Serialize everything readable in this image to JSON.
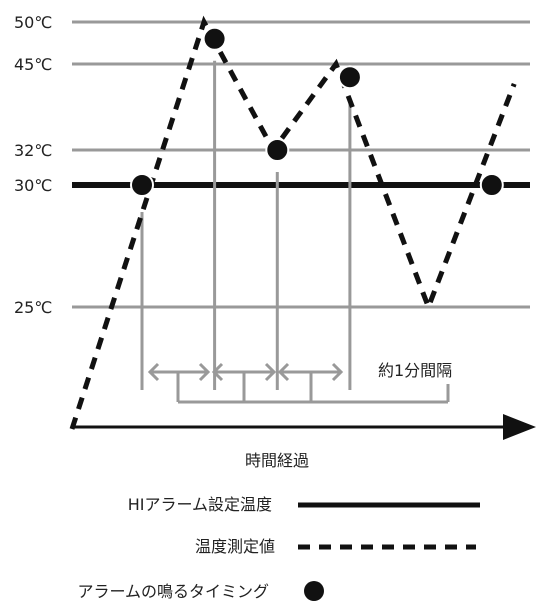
{
  "chart_data": {
    "type": "line",
    "y_ticks": [
      {
        "value": 50,
        "label": "50℃"
      },
      {
        "value": 45,
        "label": "45℃"
      },
      {
        "value": 32,
        "label": "32℃"
      },
      {
        "value": 30,
        "label": "30℃"
      },
      {
        "value": 25,
        "label": "25℃"
      }
    ],
    "threshold": {
      "value": 30
    },
    "measured_temperature": [
      {
        "t": 0,
        "v": 20
      },
      {
        "t": 2.0,
        "v": 50
      },
      {
        "t": 3.05,
        "v": 32
      },
      {
        "t": 4.0,
        "v": 45
      },
      {
        "t": 5.4,
        "v": 25
      },
      {
        "t": 6.7,
        "v": 42
      }
    ],
    "alarm_points": [
      {
        "t": 1.0,
        "v": 30
      },
      {
        "t": 2.1,
        "v": 48
      },
      {
        "t": 3.05,
        "v": 32
      },
      {
        "t": 4.15,
        "v": 43
      },
      {
        "t": 6.3,
        "v": 30
      }
    ],
    "interval_label": "約1分間隔",
    "xlabel": "時間経過"
  },
  "legend": {
    "hi_alarm": "HIアラーム設定温度",
    "measured": "温度測定値",
    "alarm_timing": "アラームの鳴るタイミング"
  }
}
